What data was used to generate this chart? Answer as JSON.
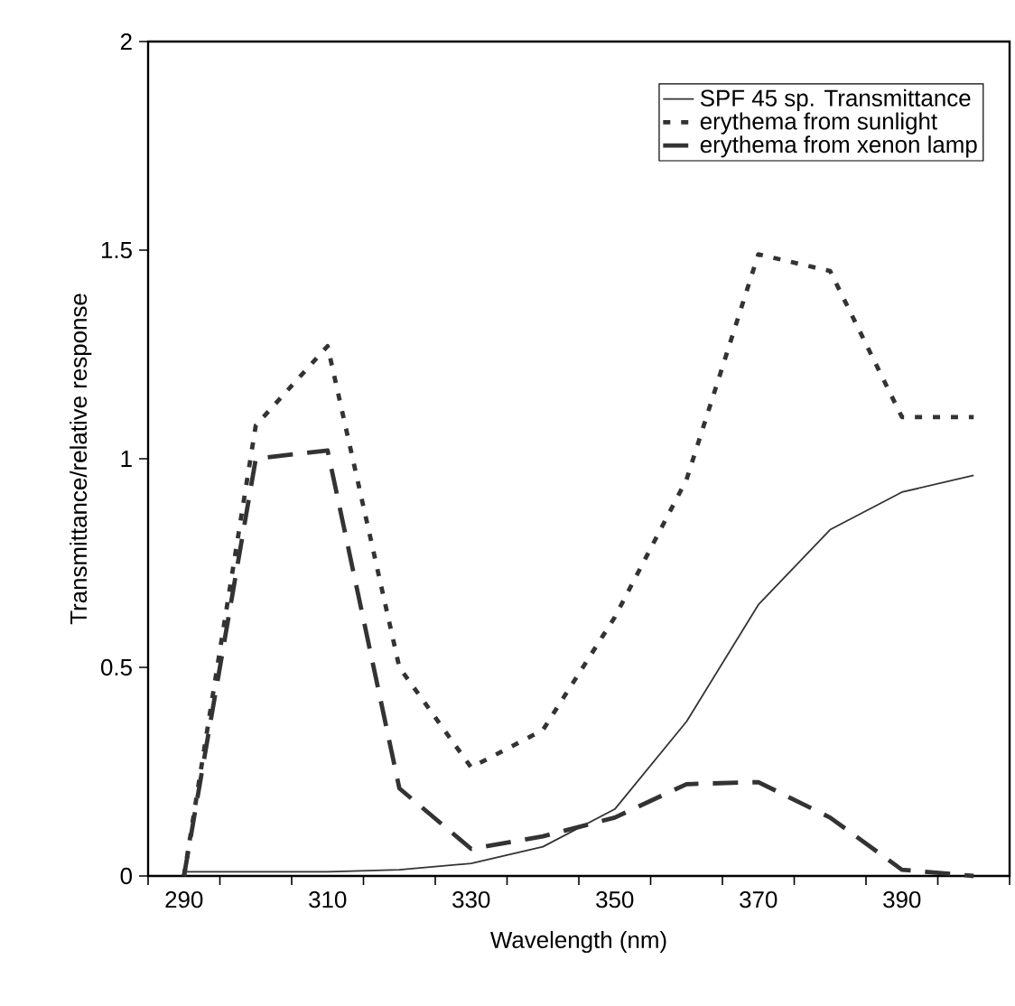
{
  "chart_data": {
    "type": "line",
    "xlabel": "Wavelength (nm)",
    "ylabel": "Transmittance/relative response",
    "x": [
      290,
      300,
      310,
      320,
      330,
      340,
      350,
      360,
      370,
      380,
      390,
      400
    ],
    "series": [
      {
        "name": "SPF 45 sp. Transmittance",
        "color": "#333333",
        "line_style": "solid",
        "values": [
          0.01,
          0.01,
          0.01,
          0.015,
          0.03,
          0.07,
          0.16,
          0.37,
          0.65,
          0.83,
          0.92,
          0.96
        ]
      },
      {
        "name": "erythema from sunlight",
        "color": "#333333",
        "line_style": "dotted",
        "values": [
          0,
          1.08,
          1.27,
          0.5,
          0.26,
          0.35,
          0.62,
          0.95,
          1.49,
          1.45,
          1.1,
          1.1
        ]
      },
      {
        "name": "erythema from xenon lamp",
        "color": "#333333",
        "line_style": "dashed",
        "values": [
          0,
          1.0,
          1.02,
          0.21,
          0.065,
          0.095,
          0.14,
          0.22,
          0.225,
          0.14,
          0.015,
          0
        ]
      }
    ],
    "xlim": [
      285,
      405
    ],
    "ylim": [
      0,
      2
    ],
    "xticks": [
      {
        "value": 285,
        "label": null
      },
      290,
      {
        "value": 295,
        "label": null
      },
      {
        "value": 305,
        "label": null
      },
      310,
      {
        "value": 315,
        "label": null
      },
      {
        "value": 325,
        "label": null
      },
      330,
      {
        "value": 335,
        "label": null
      },
      {
        "value": 345,
        "label": null
      },
      350,
      {
        "value": 355,
        "label": null
      },
      {
        "value": 365,
        "label": null
      },
      370,
      {
        "value": 375,
        "label": null
      },
      {
        "value": 385,
        "label": null
      },
      390,
      {
        "value": 395,
        "label": null
      },
      {
        "value": 405,
        "label": null
      }
    ],
    "yticks": [
      0,
      0.5,
      1,
      1.5,
      2
    ],
    "legend": "top right",
    "grid": false,
    "marker": "none"
  }
}
